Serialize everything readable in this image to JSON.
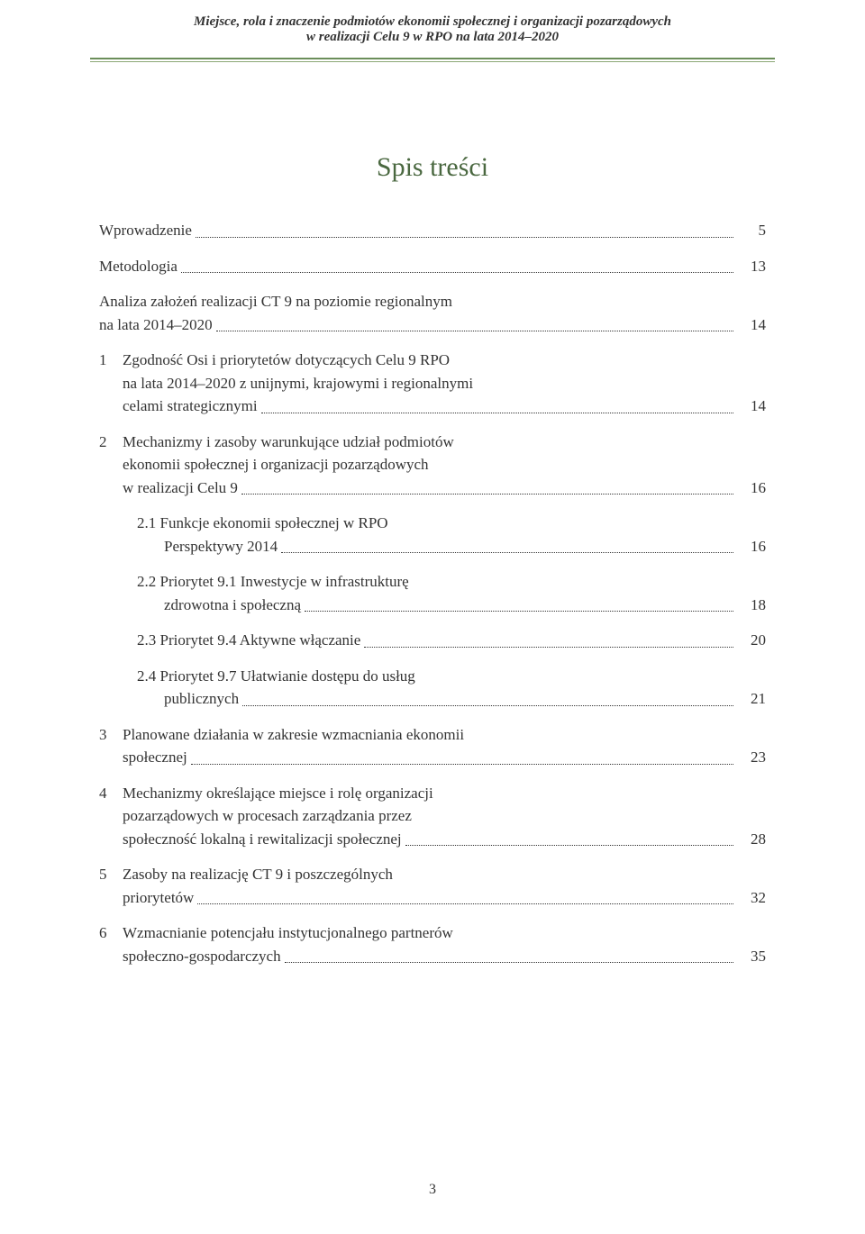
{
  "header": {
    "line1": "Miejsce, rola i znaczenie podmiotów ekonomii społecznej i organizacji pozarządowych",
    "line2": "w realizacji Celu 9 w RPO na lata 2014–2020"
  },
  "title": "Spis treści",
  "page_number": "3",
  "colors": {
    "title_color": "#4a6840",
    "text_color": "#333333",
    "rule_color": "#6b8e5a",
    "background": "#ffffff"
  },
  "typography": {
    "title_fontsize": 30,
    "body_fontsize": 17,
    "header_fontsize": 15
  },
  "toc": {
    "entries": [
      {
        "num": "",
        "text_lines": [
          "Wprowadzenie"
        ],
        "page": "5",
        "indent": 0
      },
      {
        "num": "",
        "text_lines": [
          "Metodologia"
        ],
        "page": "13",
        "indent": 0
      },
      {
        "num": "",
        "text_lines": [
          "Analiza założeń realizacji CT 9 na poziomie regionalnym",
          "na lata 2014–2020"
        ],
        "page": "14",
        "indent": 0
      },
      {
        "num": "1",
        "text_lines": [
          "Zgodność Osi i priorytetów dotyczących Celu 9 RPO",
          "na lata 2014–2020 z unijnymi, krajowymi i regionalnymi",
          "celami strategicznymi"
        ],
        "page": "14",
        "indent": 1
      },
      {
        "num": "2",
        "text_lines": [
          "Mechanizmy i zasoby warunkujące udział podmiotów",
          "ekonomii społecznej i organizacji pozarządowych",
          "w realizacji Celu 9"
        ],
        "page": "16",
        "indent": 1
      },
      {
        "num": "",
        "text_lines": [
          "2.1 Funkcje ekonomii społecznej w RPO",
          "Perspektywy 2014"
        ],
        "page": "16",
        "indent": 2
      },
      {
        "num": "",
        "text_lines": [
          "2.2 Priorytet 9.1 Inwestycje w infrastrukturę",
          "zdrowotna i społeczną"
        ],
        "page": "18",
        "indent": 2
      },
      {
        "num": "",
        "text_lines": [
          "2.3 Priorytet 9.4 Aktywne włączanie"
        ],
        "page": "20",
        "indent": 2
      },
      {
        "num": "",
        "text_lines": [
          "2.4 Priorytet 9.7 Ułatwianie dostępu do usług",
          "publicznych"
        ],
        "page": "21",
        "indent": 2
      },
      {
        "num": "3",
        "text_lines": [
          "Planowane działania w zakresie wzmacniania ekonomii",
          "społecznej"
        ],
        "page": "23",
        "indent": 1
      },
      {
        "num": "4",
        "text_lines": [
          "Mechanizmy określające miejsce i rolę organizacji",
          "pozarządowych w procesach zarządzania przez",
          "społeczność lokalną i rewitalizacji społecznej"
        ],
        "page": "28",
        "indent": 1
      },
      {
        "num": "5",
        "text_lines": [
          "Zasoby na realizację CT 9 i poszczególnych",
          "priorytetów"
        ],
        "page": "32",
        "indent": 1
      },
      {
        "num": "6",
        "text_lines": [
          "Wzmacnianie potencjału instytucjonalnego partnerów",
          "społeczno-gospodarczych"
        ],
        "page": "35",
        "indent": 1
      }
    ]
  }
}
